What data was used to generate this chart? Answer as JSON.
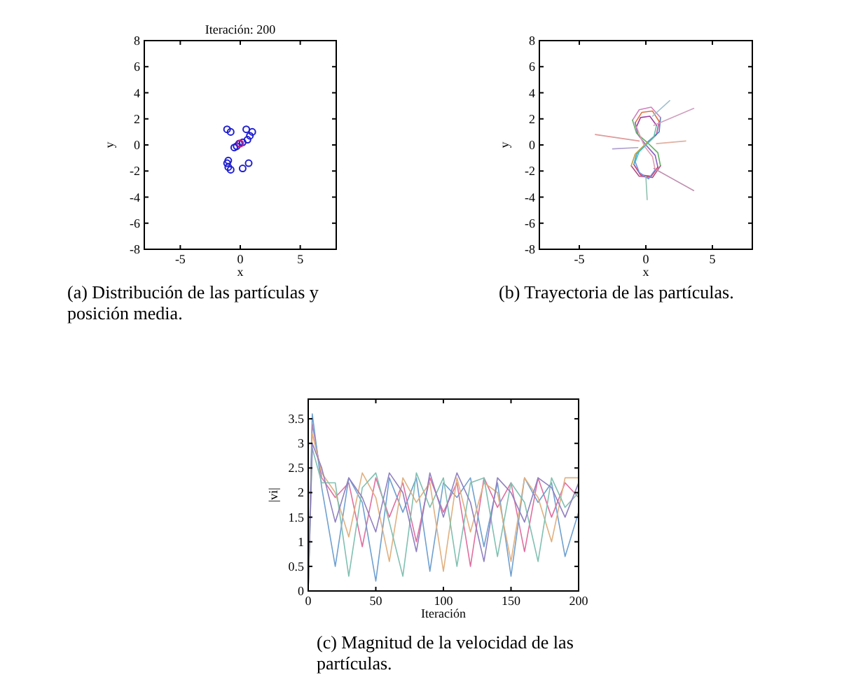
{
  "chart_data": [
    {
      "type": "scatter",
      "title": "Iteración: 200",
      "xlabel": "x",
      "ylabel": "y",
      "xlim": [
        -8,
        8
      ],
      "ylim": [
        -8,
        8
      ],
      "xticks": [
        -5,
        0,
        5
      ],
      "yticks": [
        -8,
        -6,
        -4,
        -2,
        0,
        2,
        4,
        6,
        8
      ],
      "marker": "circle",
      "annotations": [
        "(a) Distribución de las partículas y posición media."
      ],
      "series": [
        {
          "color": "#1f1fd0",
          "x": [
            -1.1,
            -0.8,
            0.5,
            1,
            0.8,
            0.6,
            0.2,
            -0.1,
            -0.3,
            -0.5,
            -1,
            -1.1,
            -1,
            -0.8,
            0.2,
            0.7
          ],
          "values": [
            1.2,
            1,
            1.2,
            1,
            0.7,
            0.4,
            0.2,
            0.1,
            -0.1,
            -0.2,
            -1.2,
            -1.4,
            -1.7,
            -1.9,
            -1.8,
            -1.4
          ]
        },
        {
          "color": "#d02080",
          "x": [
            0
          ],
          "values": [
            0.1
          ]
        }
      ]
    },
    {
      "type": "line",
      "xlabel": "x",
      "ylabel": "y",
      "xlim": [
        -8,
        8
      ],
      "ylim": [
        -8,
        8
      ],
      "xticks": [
        -5,
        0,
        5
      ],
      "yticks": [
        -8,
        -6,
        -4,
        -2,
        0,
        2,
        4,
        6,
        8
      ],
      "annotations": [
        "(b) Trayectoria de las partículas."
      ],
      "series": [
        {
          "color": "#c0509a",
          "x": [
            0,
            0.8,
            1
          ],
          "values": [
            0,
            0.8,
            1.8
          ]
        },
        {
          "color": "#e07040",
          "x": [
            -0.8,
            -0.3,
            0.5,
            1
          ],
          "values": [
            1.7,
            2.5,
            2.6,
            1.8
          ]
        },
        {
          "color": "#8a60c0",
          "x": [
            -0.8,
            -0.6,
            0,
            0.7,
            0.9
          ],
          "values": [
            1.7,
            0.8,
            0,
            -0.8,
            -1.7
          ]
        },
        {
          "color": "#d03060",
          "x": [
            -0.9,
            -0.4,
            0.4,
            0.9
          ],
          "values": [
            -1.5,
            -2.3,
            -2.4,
            -1.7
          ]
        },
        {
          "color": "#40a0d0",
          "x": [
            -0.9,
            -0.7,
            0
          ],
          "values": [
            -1.5,
            -0.7,
            0
          ]
        },
        {
          "color": "#4f7fbf",
          "x": [
            0.1,
            1,
            1.1
          ],
          "values": [
            0.2,
            1,
            2.1
          ]
        },
        {
          "color": "#d080c0",
          "x": [
            -1,
            -0.5,
            0.4,
            1.1
          ],
          "values": [
            1.9,
            2.7,
            2.9,
            2.1
          ]
        },
        {
          "color": "#60b060",
          "x": [
            -1,
            -0.7,
            0.1,
            0.9,
            1.1
          ],
          "values": [
            1.9,
            0.9,
            0.2,
            -0.6,
            -1.6
          ]
        },
        {
          "color": "#b05080",
          "x": [
            -1.1,
            -0.5,
            0.5,
            1.1
          ],
          "values": [
            -1.6,
            -2.4,
            -2.5,
            -1.6
          ]
        },
        {
          "color": "#c0a040",
          "x": [
            -1.1,
            -0.8,
            0.1
          ],
          "values": [
            -1.6,
            -0.7,
            0.2
          ]
        },
        {
          "color": "#5fbfa9",
          "x": [
            -0.1,
            0.6,
            0.8
          ],
          "values": [
            -0.1,
            0.6,
            1.5
          ]
        },
        {
          "color": "#a040a0",
          "x": [
            -0.7,
            -0.4,
            0.3,
            0.8
          ],
          "values": [
            1.4,
            2.1,
            2.2,
            1.5
          ]
        },
        {
          "color": "#e0a0b0",
          "x": [
            -0.7,
            -0.4,
            -0.1,
            0.5,
            0.7
          ],
          "values": [
            1.4,
            0.6,
            -0.1,
            -0.9,
            -1.9
          ]
        },
        {
          "color": "#7090e0",
          "x": [
            -0.8,
            -0.5,
            0.2,
            0.7
          ],
          "values": [
            -1.3,
            -2.1,
            -2.6,
            -1.9
          ]
        },
        {
          "color": "#40c0c0",
          "x": [
            -0.8,
            -0.5,
            -0.1
          ],
          "values": [
            -1.3,
            -0.5,
            -0.1
          ]
        },
        {
          "color": "#e09a9a",
          "x": [
            -3.8,
            -0.5
          ],
          "values": [
            0.8,
            0.3
          ]
        },
        {
          "color": "#d0a0c0",
          "x": [
            3.6,
            0.6
          ],
          "values": [
            2.8,
            1.5
          ]
        },
        {
          "color": "#c090b0",
          "x": [
            3.6,
            0.6
          ],
          "values": [
            -3.5,
            -1.8
          ]
        },
        {
          "color": "#a0c0d0",
          "x": [
            1.8,
            0.5
          ],
          "values": [
            3.4,
            2.2
          ]
        },
        {
          "color": "#90c0b0",
          "x": [
            0.1,
            0
          ],
          "values": [
            -4.2,
            -2.4
          ]
        },
        {
          "color": "#b0a0d0",
          "x": [
            -2.5,
            -0.6
          ],
          "values": [
            -0.3,
            -0.2
          ]
        },
        {
          "color": "#e0b0a0",
          "x": [
            3,
            0.8
          ],
          "values": [
            0.3,
            0.1
          ]
        }
      ]
    },
    {
      "type": "line",
      "xlabel": "Iteración",
      "ylabel": "|vi|",
      "xlim": [
        0,
        200
      ],
      "ylim": [
        0,
        3.9
      ],
      "xticks": [
        0,
        50,
        100,
        150,
        200
      ],
      "yticks": [
        0,
        0.5,
        1,
        1.5,
        2,
        2.5,
        3,
        3.5
      ],
      "annotations": [
        "(c) Magnitud de la velocidad de las partículas."
      ],
      "series": [
        {
          "color": "#e06fa0",
          "x": [
            0,
            3,
            10,
            20,
            30,
            40,
            50,
            60,
            70,
            80,
            90,
            100,
            110,
            120,
            130,
            140,
            150,
            160,
            170,
            180,
            190,
            200
          ],
          "values": [
            0,
            3.4,
            2.3,
            1.9,
            2.2,
            0.9,
            2.3,
            1.5,
            2.2,
            1.0,
            2.3,
            1.6,
            2.2,
            0.5,
            2.3,
            1.7,
            2.2,
            0.8,
            2.3,
            1.5,
            2.2,
            1.9
          ]
        },
        {
          "color": "#6fa0d0",
          "x": [
            0,
            3,
            10,
            20,
            30,
            40,
            50,
            60,
            70,
            80,
            90,
            100,
            110,
            120,
            130,
            140,
            150,
            160,
            170,
            180,
            190,
            200
          ],
          "values": [
            0,
            3.6,
            2.1,
            0.5,
            2.3,
            1.8,
            0.2,
            2.3,
            1.6,
            2.3,
            0.4,
            2.2,
            1.9,
            2.3,
            0.9,
            2.2,
            0.3,
            2.3,
            1.8,
            2.2,
            0.7,
            1.6
          ]
        },
        {
          "color": "#e0b080",
          "x": [
            0,
            3,
            10,
            20,
            30,
            40,
            50,
            60,
            70,
            80,
            90,
            100,
            110,
            120,
            130,
            140,
            150,
            160,
            170,
            180,
            190,
            200
          ],
          "values": [
            0,
            3.2,
            2.4,
            2.0,
            1.1,
            2.4,
            1.9,
            0.6,
            2.3,
            1.8,
            2.2,
            0.4,
            2.3,
            1.2,
            2.2,
            2.0,
            0.6,
            2.3,
            1.9,
            1.0,
            2.3,
            2.3
          ]
        },
        {
          "color": "#80c0b0",
          "x": [
            0,
            3,
            10,
            20,
            30,
            40,
            50,
            60,
            70,
            80,
            90,
            100,
            110,
            120,
            130,
            140,
            150,
            160,
            170,
            180,
            190,
            200
          ],
          "values": [
            0,
            2.9,
            2.2,
            2.2,
            0.3,
            2.1,
            2.4,
            1.4,
            0.3,
            2.4,
            1.7,
            2.3,
            0.5,
            2.2,
            2.3,
            0.7,
            2.2,
            1.8,
            0.6,
            2.3,
            1.7,
            2.0
          ]
        },
        {
          "color": "#9080c0",
          "x": [
            0,
            3,
            10,
            20,
            30,
            40,
            50,
            60,
            70,
            80,
            90,
            100,
            110,
            120,
            130,
            140,
            150,
            160,
            170,
            180,
            190,
            200
          ],
          "values": [
            0,
            3.0,
            2.5,
            1.4,
            2.3,
            1.9,
            1.2,
            2.4,
            2.0,
            0.8,
            2.4,
            1.5,
            2.4,
            1.8,
            0.6,
            2.3,
            2.0,
            1.4,
            2.3,
            2.1,
            1.5,
            2.2
          ]
        }
      ]
    }
  ]
}
